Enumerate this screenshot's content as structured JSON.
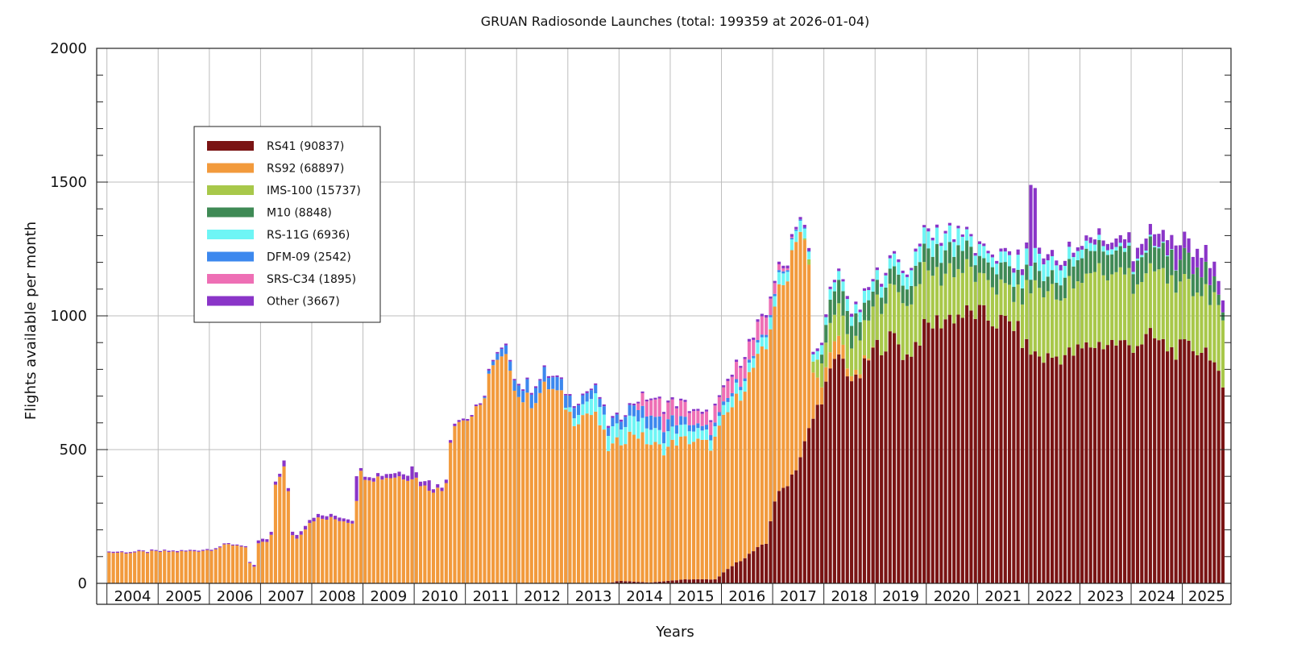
{
  "chart_data": {
    "type": "bar",
    "stacked": true,
    "title": "GRUAN Radiosonde Launches (total: 199359 at 2026-01-04)",
    "xlabel": "Years",
    "ylabel": "Flights available per month",
    "ylim": [
      0,
      2000
    ],
    "y_major_ticks": [
      0,
      500,
      1000,
      1500,
      2000
    ],
    "y_minor_step": 100,
    "x_range_years": [
      2003.8,
      2025.95
    ],
    "x_tick_labels": [
      "2004",
      "2005",
      "2006",
      "2007",
      "2008",
      "2009",
      "2010",
      "2011",
      "2012",
      "2013",
      "2014",
      "2015",
      "2016",
      "2017",
      "2018",
      "2019",
      "2020",
      "2021",
      "2022",
      "2023",
      "2024",
      "2025"
    ],
    "grid": true,
    "legend_position": "upper-left",
    "series": [
      {
        "name": "RS41 (90837)",
        "color": "#7a1414",
        "anchors": [
          [
            2004.0,
            0
          ],
          [
            2013.8,
            0
          ],
          [
            2014.0,
            10
          ],
          [
            2014.6,
            3
          ],
          [
            2015.3,
            15
          ],
          [
            2015.9,
            15
          ],
          [
            2016.1,
            50
          ],
          [
            2016.4,
            90
          ],
          [
            2016.7,
            130
          ],
          [
            2016.9,
            150
          ],
          [
            2017.0,
            300
          ],
          [
            2017.3,
            380
          ],
          [
            2017.5,
            450
          ],
          [
            2017.8,
            620
          ],
          [
            2018.0,
            720
          ],
          [
            2018.3,
            860
          ],
          [
            2018.6,
            740
          ],
          [
            2019.0,
            880
          ],
          [
            2019.4,
            920
          ],
          [
            2019.6,
            840
          ],
          [
            2020.0,
            960
          ],
          [
            2020.5,
            1000
          ],
          [
            2021.0,
            1010
          ],
          [
            2021.3,
            980
          ],
          [
            2021.7,
            970
          ],
          [
            2022.0,
            870
          ],
          [
            2022.3,
            840
          ],
          [
            2022.6,
            850
          ],
          [
            2022.9,
            860
          ],
          [
            2023.2,
            890
          ],
          [
            2023.6,
            900
          ],
          [
            2024.0,
            890
          ],
          [
            2024.4,
            920
          ],
          [
            2024.8,
            870
          ],
          [
            2025.2,
            880
          ],
          [
            2025.55,
            870
          ],
          [
            2025.8,
            700
          ]
        ]
      },
      {
        "name": "RS92 (68897)",
        "color": "#f29a3c",
        "anchors": [
          [
            2004.0,
            115
          ],
          [
            2004.5,
            115
          ],
          [
            2005.0,
            118
          ],
          [
            2005.5,
            118
          ],
          [
            2006.0,
            125
          ],
          [
            2006.4,
            145
          ],
          [
            2006.7,
            140
          ],
          [
            2006.85,
            30
          ],
          [
            2006.95,
            150
          ],
          [
            2007.2,
            155
          ],
          [
            2007.3,
            390
          ],
          [
            2007.5,
            440
          ],
          [
            2007.6,
            190
          ],
          [
            2007.7,
            165
          ],
          [
            2008.0,
            240
          ],
          [
            2008.5,
            240
          ],
          [
            2008.8,
            230
          ],
          [
            2008.95,
            410
          ],
          [
            2009.2,
            395
          ],
          [
            2009.6,
            400
          ],
          [
            2010.0,
            400
          ],
          [
            2010.2,
            360
          ],
          [
            2010.6,
            345
          ],
          [
            2010.75,
            610
          ],
          [
            2011.0,
            610
          ],
          [
            2011.3,
            650
          ],
          [
            2011.45,
            780
          ],
          [
            2011.7,
            830
          ],
          [
            2011.9,
            820
          ],
          [
            2012.0,
            700
          ],
          [
            2012.3,
            680
          ],
          [
            2012.6,
            740
          ],
          [
            2012.9,
            690
          ],
          [
            2013.1,
            610
          ],
          [
            2013.4,
            640
          ],
          [
            2013.6,
            610
          ],
          [
            2013.8,
            500
          ],
          [
            2014.0,
            520
          ],
          [
            2014.3,
            560
          ],
          [
            2014.6,
            520
          ],
          [
            2014.9,
            490
          ],
          [
            2015.1,
            520
          ],
          [
            2015.4,
            520
          ],
          [
            2015.8,
            500
          ],
          [
            2016.0,
            560
          ],
          [
            2016.3,
            610
          ],
          [
            2016.6,
            680
          ],
          [
            2016.9,
            730
          ],
          [
            2017.2,
            750
          ],
          [
            2017.5,
            900
          ],
          [
            2017.7,
            640
          ],
          [
            2017.8,
            130
          ],
          [
            2018.0,
            50
          ],
          [
            2018.3,
            70
          ],
          [
            2018.5,
            20
          ],
          [
            2018.7,
            15
          ],
          [
            2019.0,
            0
          ],
          [
            2025.8,
            0
          ]
        ]
      },
      {
        "name": "IMS-100 (15737)",
        "color": "#a8c84a",
        "anchors": [
          [
            2004.0,
            0
          ],
          [
            2017.6,
            0
          ],
          [
            2017.8,
            40
          ],
          [
            2018.0,
            90
          ],
          [
            2018.3,
            110
          ],
          [
            2018.6,
            120
          ],
          [
            2019.0,
            160
          ],
          [
            2019.4,
            180
          ],
          [
            2019.8,
            220
          ],
          [
            2020.3,
            180
          ],
          [
            2020.8,
            150
          ],
          [
            2021.3,
            130
          ],
          [
            2021.8,
            120
          ],
          [
            2022.0,
            240
          ],
          [
            2022.5,
            240
          ],
          [
            2023.0,
            260
          ],
          [
            2023.5,
            260
          ],
          [
            2024.0,
            260
          ],
          [
            2024.5,
            240
          ],
          [
            2025.0,
            230
          ],
          [
            2025.5,
            230
          ],
          [
            2025.8,
            260
          ]
        ]
      },
      {
        "name": "M10 (8848)",
        "color": "#3f8a55",
        "anchors": [
          [
            2004.0,
            0
          ],
          [
            2017.9,
            0
          ],
          [
            2018.1,
            100
          ],
          [
            2018.5,
            90
          ],
          [
            2019.0,
            60
          ],
          [
            2019.5,
            60
          ],
          [
            2020.0,
            80
          ],
          [
            2020.5,
            90
          ],
          [
            2021.0,
            60
          ],
          [
            2021.5,
            70
          ],
          [
            2022.0,
            60
          ],
          [
            2022.5,
            60
          ],
          [
            2023.0,
            80
          ],
          [
            2023.5,
            90
          ],
          [
            2024.0,
            80
          ],
          [
            2024.5,
            90
          ],
          [
            2025.0,
            90
          ],
          [
            2025.5,
            80
          ],
          [
            2025.8,
            30
          ]
        ]
      },
      {
        "name": "RS-11G (6936)",
        "color": "#6ef5f5",
        "anchors": [
          [
            2004.0,
            0
          ],
          [
            2012.9,
            0
          ],
          [
            2013.2,
            40
          ],
          [
            2013.5,
            60
          ],
          [
            2013.8,
            60
          ],
          [
            2014.0,
            60
          ],
          [
            2014.5,
            60
          ],
          [
            2015.0,
            50
          ],
          [
            2015.5,
            40
          ],
          [
            2016.0,
            40
          ],
          [
            2016.5,
            40
          ],
          [
            2017.0,
            40
          ],
          [
            2017.5,
            40
          ],
          [
            2017.8,
            30
          ],
          [
            2018.5,
            40
          ],
          [
            2019.0,
            40
          ],
          [
            2019.5,
            50
          ],
          [
            2020.0,
            60
          ],
          [
            2020.5,
            60
          ],
          [
            2021.0,
            40
          ],
          [
            2021.5,
            40
          ],
          [
            2022.0,
            60
          ],
          [
            2022.5,
            60
          ],
          [
            2023.0,
            30
          ],
          [
            2023.5,
            20
          ],
          [
            2024.0,
            10
          ],
          [
            2024.5,
            5
          ],
          [
            2025.0,
            0
          ],
          [
            2025.8,
            0
          ]
        ]
      },
      {
        "name": "DFM-09 (2542)",
        "color": "#3c88ee",
        "anchors": [
          [
            2004.0,
            0
          ],
          [
            2011.3,
            0
          ],
          [
            2011.6,
            20
          ],
          [
            2011.9,
            40
          ],
          [
            2012.2,
            50
          ],
          [
            2012.6,
            50
          ],
          [
            2013.0,
            40
          ],
          [
            2013.5,
            30
          ],
          [
            2014.0,
            30
          ],
          [
            2014.5,
            50
          ],
          [
            2015.0,
            40
          ],
          [
            2015.5,
            20
          ],
          [
            2016.0,
            15
          ],
          [
            2016.5,
            10
          ],
          [
            2017.0,
            8
          ],
          [
            2017.5,
            5
          ],
          [
            2018.0,
            0
          ],
          [
            2025.8,
            0
          ]
        ]
      },
      {
        "name": "SRS-C34 (1895)",
        "color": "#ee6fb5",
        "anchors": [
          [
            2004.0,
            0
          ],
          [
            2014.3,
            0
          ],
          [
            2014.5,
            60
          ],
          [
            2015.0,
            60
          ],
          [
            2015.4,
            50
          ],
          [
            2015.8,
            55
          ],
          [
            2016.2,
            60
          ],
          [
            2016.6,
            70
          ],
          [
            2016.9,
            65
          ],
          [
            2017.2,
            10
          ],
          [
            2017.5,
            0
          ],
          [
            2025.8,
            0
          ]
        ]
      },
      {
        "name": "Other (3667)",
        "color": "#8a35c8",
        "anchors": [
          [
            2004.0,
            4
          ],
          [
            2006.8,
            4
          ],
          [
            2007.0,
            12
          ],
          [
            2008.8,
            12
          ],
          [
            2009.0,
            10
          ],
          [
            2010.0,
            20
          ],
          [
            2011.0,
            6
          ],
          [
            2013.0,
            6
          ],
          [
            2016.0,
            8
          ],
          [
            2018.0,
            10
          ],
          [
            2020.0,
            10
          ],
          [
            2021.5,
            10
          ],
          [
            2022.0,
            25
          ],
          [
            2023.0,
            15
          ],
          [
            2024.0,
            35
          ],
          [
            2024.6,
            50
          ],
          [
            2025.0,
            60
          ],
          [
            2025.5,
            65
          ],
          [
            2025.8,
            40
          ]
        ]
      }
    ],
    "spikes": [
      {
        "x": 2007.48,
        "series": "Other (3667)",
        "extra": 10
      },
      {
        "x": 2008.9,
        "series": "Other (3667)",
        "extra": 80
      },
      {
        "x": 2010.0,
        "series": "Other (3667)",
        "extra": 30
      },
      {
        "x": 2010.32,
        "series": "Other (3667)",
        "extra": 25
      },
      {
        "x": 2022.05,
        "series": "Other (3667)",
        "extra": 280
      },
      {
        "x": 2022.15,
        "series": "Other (3667)",
        "extra": 200
      },
      {
        "x": 2024.88,
        "series": "Other (3667)",
        "extra": 40
      }
    ]
  }
}
